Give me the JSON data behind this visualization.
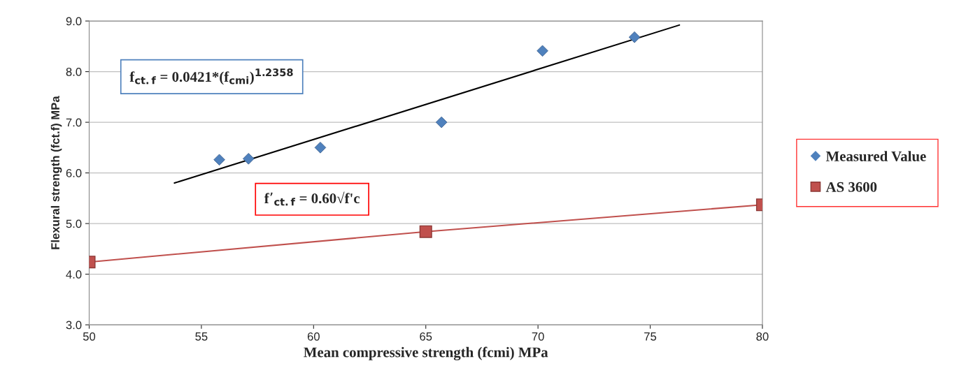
{
  "chart_data": {
    "type": "scatter",
    "xlabel": "Mean compressive strength (fcmi) MPa",
    "ylabel": "Flexural strength (fct.f) MPa",
    "series": [
      {
        "name": "Measured Value",
        "marker": "diamond",
        "color": "#4f81bd",
        "x": [
          55.8,
          57.1,
          60.3,
          65.7,
          70.2,
          74.3
        ],
        "values": [
          6.26,
          6.28,
          6.5,
          7.0,
          8.41,
          8.68
        ]
      },
      {
        "name": "AS 3600",
        "type": "line",
        "marker": "square",
        "color": "#c0504d",
        "x": [
          50,
          65,
          80
        ],
        "values": [
          4.24,
          4.84,
          5.37
        ]
      },
      {
        "type": "line",
        "marker": "none",
        "color": "#000000",
        "x": [
          53.8,
          76.3
        ],
        "values": [
          5.8,
          8.92
        ]
      }
    ],
    "annotations": [
      "f$_{ct.f}$ = 0.0421*(f$_{cmi}$)$^{1.2358}$",
      "f’$_{ct.f}$ = 0.60√f'c"
    ],
    "xlim": [
      50,
      80
    ],
    "xticks": [
      50,
      55,
      60,
      65,
      70,
      75,
      80
    ],
    "ylim": [
      3,
      9
    ],
    "yticks": [
      {
        "value": 3,
        "label": "3.0"
      },
      {
        "value": 4,
        "label": "4.0"
      },
      {
        "value": 5,
        "label": "5.0"
      },
      {
        "value": 6,
        "label": "6.0"
      },
      {
        "value": 7,
        "label": "7.0"
      },
      {
        "value": 8,
        "label": "8.0"
      },
      {
        "value": 9,
        "label": "9.0"
      }
    ],
    "grid": "y",
    "legend": "right"
  }
}
